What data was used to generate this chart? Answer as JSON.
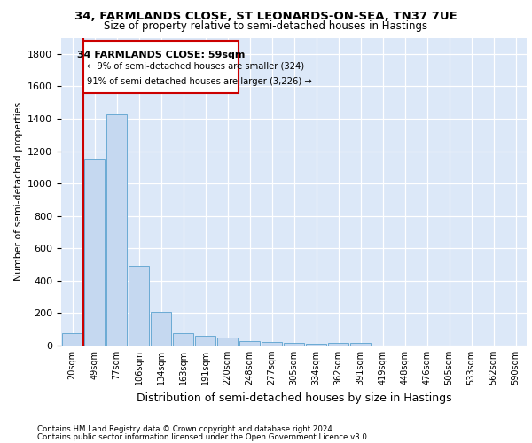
{
  "title1": "34, FARMLANDS CLOSE, ST LEONARDS-ON-SEA, TN37 7UE",
  "title2": "Size of property relative to semi-detached houses in Hastings",
  "xlabel": "Distribution of semi-detached houses by size in Hastings",
  "ylabel": "Number of semi-detached properties",
  "categories": [
    "20sqm",
    "49sqm",
    "77sqm",
    "106sqm",
    "134sqm",
    "163sqm",
    "191sqm",
    "220sqm",
    "248sqm",
    "277sqm",
    "305sqm",
    "334sqm",
    "362sqm",
    "391sqm",
    "419sqm",
    "448sqm",
    "476sqm",
    "505sqm",
    "533sqm",
    "562sqm",
    "590sqm"
  ],
  "values": [
    75,
    1150,
    1425,
    490,
    210,
    75,
    60,
    50,
    30,
    20,
    15,
    10,
    15,
    15,
    0,
    0,
    0,
    0,
    0,
    0,
    0
  ],
  "bar_color": "#c5d8f0",
  "bar_edge_color": "#6aaad4",
  "annotation_border_color": "#cc0000",
  "red_line_bar_index": 1,
  "annotation_text1": "34 FARMLANDS CLOSE: 59sqm",
  "annotation_text2": "← 9% of semi-detached houses are smaller (324)",
  "annotation_text3": "91% of semi-detached houses are larger (3,226) →",
  "footer1": "Contains HM Land Registry data © Crown copyright and database right 2024.",
  "footer2": "Contains public sector information licensed under the Open Government Licence v3.0.",
  "ylim": [
    0,
    1900
  ],
  "yticks": [
    0,
    200,
    400,
    600,
    800,
    1000,
    1200,
    1400,
    1600,
    1800
  ],
  "background_color": "#dce8f8",
  "fig_background_color": "#ffffff"
}
